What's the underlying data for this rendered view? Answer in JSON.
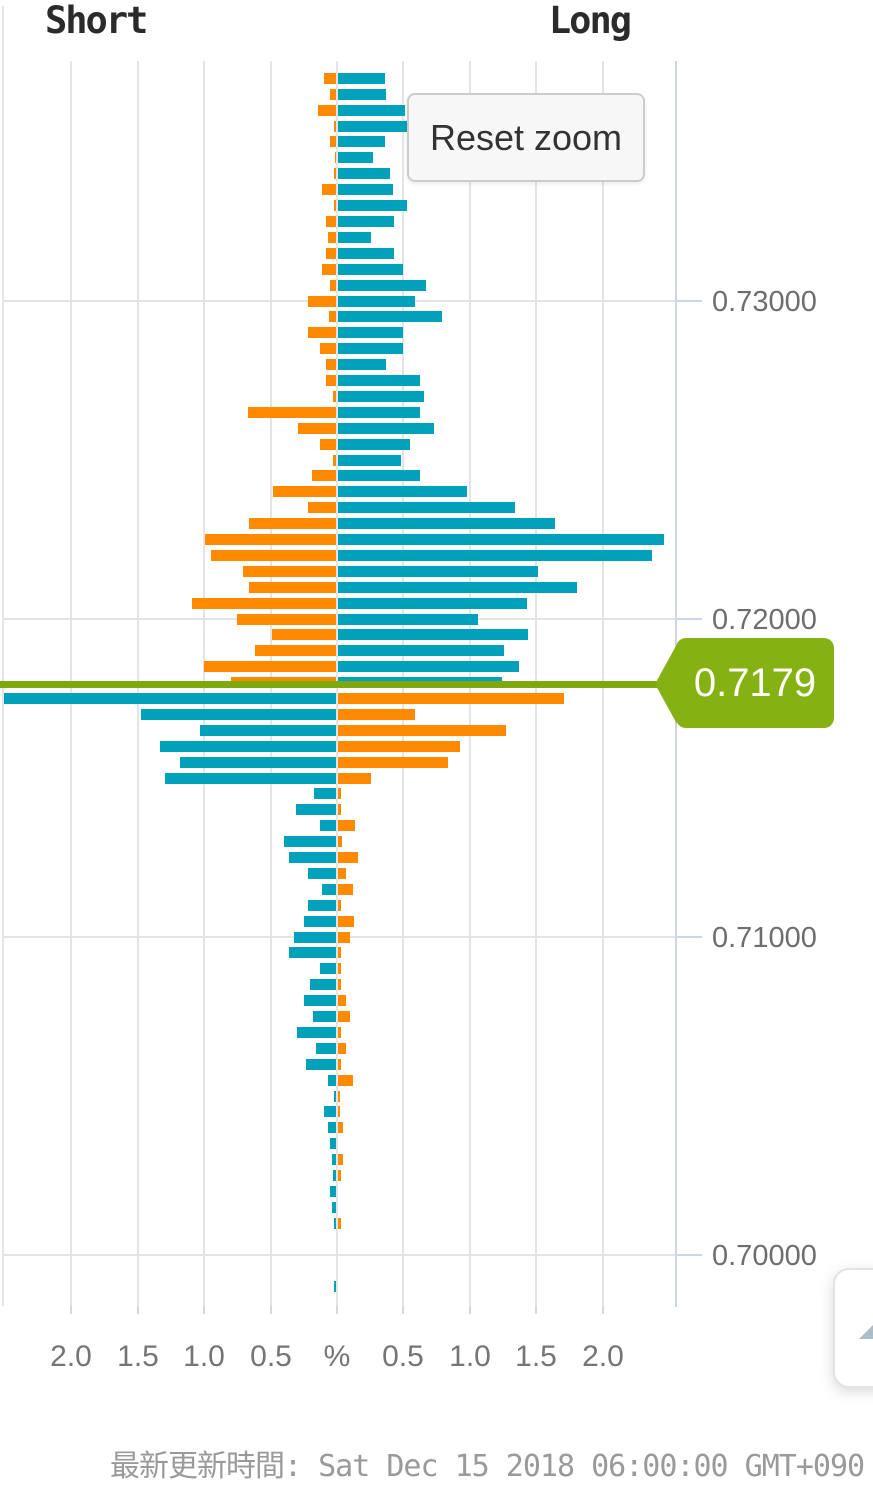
{
  "header": {
    "short_label": "Short",
    "long_label": "Long"
  },
  "reset_zoom_label": "Reset zoom",
  "price_flag_label": "0.7179",
  "footer": {
    "updated_text": "最新更新時間: Sat Dec 15 2018 06:00:00 GMT+090"
  },
  "colors": {
    "short_losing_teal": "#00a2bb",
    "long_losing_teal": "#00a2bb",
    "profit_orange": "#ff8a00",
    "current_price_line": "#7ea80d",
    "current_price_flag": "#85b212",
    "gridline": "#e4e4e4",
    "axis_line": "#ccd6eb",
    "axis_label_text": "#6e6e6e"
  },
  "chart_data": {
    "type": "bar",
    "variant": "bidirectional-open-positions",
    "title": "",
    "left_side_label": "Short",
    "right_side_label": "Long",
    "value_unit": "%",
    "x_axis": {
      "tick_labels": [
        "2.0",
        "1.5",
        "1.0",
        "0.5",
        "%",
        "0.5",
        "1.0",
        "1.5",
        "2.0"
      ],
      "range_pct": [
        -2.5,
        2.5
      ],
      "grid": true
    },
    "y_axis": {
      "ticks": [
        0.73,
        0.72,
        0.71,
        0.7
      ],
      "tick_labels": [
        "0.73000",
        "0.72000",
        "0.71000",
        "0.70000"
      ],
      "range": [
        0.699,
        0.7375
      ]
    },
    "current_price": 0.7179,
    "color_rule": "above current price: short=orange,long=teal; below: short=teal,long=orange",
    "rows_format": [
      "price",
      "short_pct",
      "long_pct"
    ],
    "rows": [
      [
        0.737,
        0.1,
        0.35
      ],
      [
        0.7365,
        0.05,
        0.36
      ],
      [
        0.736,
        0.14,
        0.5
      ],
      [
        0.7355,
        0.02,
        0.53
      ],
      [
        0.735,
        0.05,
        0.35
      ],
      [
        0.7345,
        0.01,
        0.26
      ],
      [
        0.734,
        0.02,
        0.39
      ],
      [
        0.7335,
        0.11,
        0.41
      ],
      [
        0.733,
        0.02,
        0.52
      ],
      [
        0.7325,
        0.08,
        0.42
      ],
      [
        0.732,
        0.07,
        0.25
      ],
      [
        0.7315,
        0.08,
        0.42
      ],
      [
        0.731,
        0.11,
        0.49
      ],
      [
        0.7305,
        0.05,
        0.66
      ],
      [
        0.73,
        0.22,
        0.58
      ],
      [
        0.7295,
        0.06,
        0.78
      ],
      [
        0.729,
        0.22,
        0.49
      ],
      [
        0.7285,
        0.13,
        0.49
      ],
      [
        0.728,
        0.08,
        0.36
      ],
      [
        0.7275,
        0.08,
        0.62
      ],
      [
        0.727,
        0.03,
        0.65
      ],
      [
        0.7265,
        0.67,
        0.62
      ],
      [
        0.726,
        0.29,
        0.72
      ],
      [
        0.7255,
        0.13,
        0.54
      ],
      [
        0.725,
        0.03,
        0.47
      ],
      [
        0.7245,
        0.19,
        0.62
      ],
      [
        0.724,
        0.48,
        0.97
      ],
      [
        0.7235,
        0.22,
        1.33
      ],
      [
        0.723,
        0.66,
        1.63
      ],
      [
        0.7225,
        0.99,
        2.45
      ],
      [
        0.722,
        0.95,
        2.36
      ],
      [
        0.7215,
        0.71,
        1.5
      ],
      [
        0.721,
        0.66,
        1.8
      ],
      [
        0.7205,
        1.09,
        1.42
      ],
      [
        0.72,
        0.75,
        1.05
      ],
      [
        0.7195,
        0.49,
        1.43
      ],
      [
        0.719,
        0.62,
        1.25
      ],
      [
        0.7185,
        1.0,
        1.36
      ],
      [
        0.718,
        0.8,
        1.23
      ],
      [
        0.7175,
        2.5,
        1.7
      ],
      [
        0.717,
        1.47,
        0.58
      ],
      [
        0.7165,
        1.03,
        1.26
      ],
      [
        0.716,
        1.33,
        0.92
      ],
      [
        0.7155,
        1.18,
        0.83
      ],
      [
        0.715,
        1.29,
        0.25
      ],
      [
        0.7145,
        0.17,
        0.02
      ],
      [
        0.714,
        0.31,
        0.02
      ],
      [
        0.7135,
        0.13,
        0.13
      ],
      [
        0.713,
        0.4,
        0.03
      ],
      [
        0.7125,
        0.36,
        0.15
      ],
      [
        0.712,
        0.22,
        0.06
      ],
      [
        0.7115,
        0.11,
        0.11
      ],
      [
        0.711,
        0.22,
        0.02
      ],
      [
        0.7105,
        0.25,
        0.12
      ],
      [
        0.71,
        0.32,
        0.09
      ],
      [
        0.7095,
        0.36,
        0.02
      ],
      [
        0.709,
        0.13,
        0.02
      ],
      [
        0.7085,
        0.2,
        0.02
      ],
      [
        0.708,
        0.25,
        0.06
      ],
      [
        0.7075,
        0.18,
        0.09
      ],
      [
        0.707,
        0.3,
        0.02
      ],
      [
        0.7065,
        0.16,
        0.06
      ],
      [
        0.706,
        0.23,
        0.02
      ],
      [
        0.7055,
        0.07,
        0.11
      ],
      [
        0.705,
        0.02,
        0.01
      ],
      [
        0.7045,
        0.1,
        0.01
      ],
      [
        0.704,
        0.07,
        0.04
      ],
      [
        0.7035,
        0.05,
        0.0
      ],
      [
        0.703,
        0.04,
        0.04
      ],
      [
        0.7025,
        0.03,
        0.02
      ],
      [
        0.702,
        0.05,
        0.0
      ],
      [
        0.7015,
        0.04,
        0.0
      ],
      [
        0.701,
        0.02,
        0.02
      ],
      [
        0.7005,
        0.0,
        0.0
      ],
      [
        0.7,
        0.0,
        0.0
      ],
      [
        0.6995,
        0.0,
        0.0
      ],
      [
        0.699,
        0.02,
        0.0
      ]
    ]
  }
}
